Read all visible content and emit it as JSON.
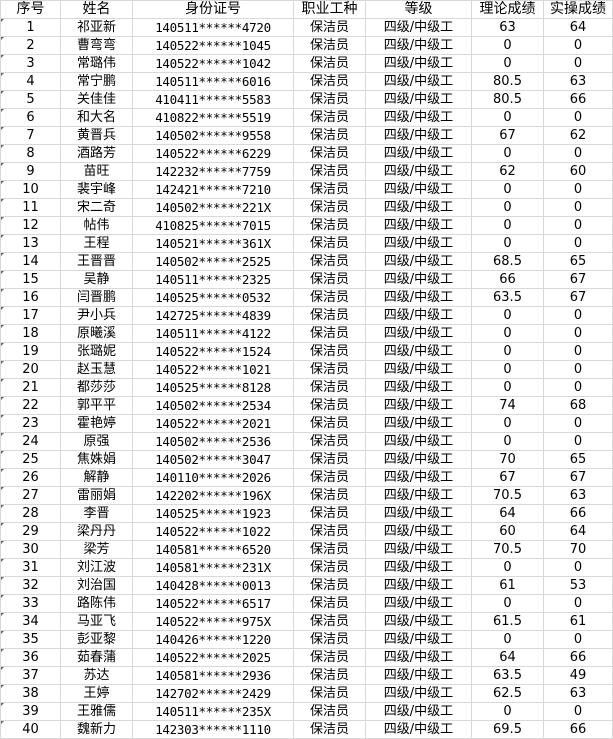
{
  "headers": [
    "序号",
    "姓名",
    "身份证号",
    "职业工种",
    "等级",
    "理论成绩",
    "实操成绩"
  ],
  "rows": [
    [
      "1",
      "祁亚新",
      "140511******4720",
      "保洁员",
      "四级/中级工",
      "63",
      "64"
    ],
    [
      "2",
      "曹弯弯",
      "140522******1045",
      "保洁员",
      "四级/中级工",
      "0",
      "0"
    ],
    [
      "3",
      "常璐伟",
      "140522******1042",
      "保洁员",
      "四级/中级工",
      "0",
      "0"
    ],
    [
      "4",
      "常宁鹏",
      "140511******6016",
      "保洁员",
      "四级/中级工",
      "80.5",
      "63"
    ],
    [
      "5",
      "关佳佳",
      "410411******5583",
      "保洁员",
      "四级/中级工",
      "80.5",
      "66"
    ],
    [
      "6",
      "和大名",
      "410822******5519",
      "保洁员",
      "四级/中级工",
      "0",
      "0"
    ],
    [
      "7",
      "黄晋兵",
      "140502******9558",
      "保洁员",
      "四级/中级工",
      "67",
      "62"
    ],
    [
      "8",
      "酒路芳",
      "140522******6229",
      "保洁员",
      "四级/中级工",
      "0",
      "0"
    ],
    [
      "9",
      "苗旺",
      "142232******7759",
      "保洁员",
      "四级/中级工",
      "62",
      "60"
    ],
    [
      "10",
      "裴宇峰",
      "142421******7210",
      "保洁员",
      "四级/中级工",
      "0",
      "0"
    ],
    [
      "11",
      "宋二奇",
      "140502******221X",
      "保洁员",
      "四级/中级工",
      "0",
      "0"
    ],
    [
      "12",
      "帖伟",
      "410825******7015",
      "保洁员",
      "四级/中级工",
      "0",
      "0"
    ],
    [
      "13",
      "王程",
      "140521******361X",
      "保洁员",
      "四级/中级工",
      "0",
      "0"
    ],
    [
      "14",
      "王晋晋",
      "140502******2525",
      "保洁员",
      "四级/中级工",
      "68.5",
      "65"
    ],
    [
      "15",
      "吴静",
      "140511******2325",
      "保洁员",
      "四级/中级工",
      "66",
      "67"
    ],
    [
      "16",
      "闫晋鹏",
      "140525******0532",
      "保洁员",
      "四级/中级工",
      "63.5",
      "67"
    ],
    [
      "17",
      "尹小兵",
      "142725******4839",
      "保洁员",
      "四级/中级工",
      "0",
      "0"
    ],
    [
      "18",
      "原曦溪",
      "140511******4122",
      "保洁员",
      "四级/中级工",
      "0",
      "0"
    ],
    [
      "19",
      "张璐妮",
      "140522******1524",
      "保洁员",
      "四级/中级工",
      "0",
      "0"
    ],
    [
      "20",
      "赵玉慧",
      "140522******1021",
      "保洁员",
      "四级/中级工",
      "0",
      "0"
    ],
    [
      "21",
      "都莎莎",
      "140525******8128",
      "保洁员",
      "四级/中级工",
      "0",
      "0"
    ],
    [
      "22",
      "郭平平",
      "140502******2534",
      "保洁员",
      "四级/中级工",
      "74",
      "68"
    ],
    [
      "23",
      "霍艳婷",
      "140522******2021",
      "保洁员",
      "四级/中级工",
      "0",
      "0"
    ],
    [
      "24",
      "原强",
      "140502******2536",
      "保洁员",
      "四级/中级工",
      "0",
      "0"
    ],
    [
      "25",
      "焦姝娟",
      "140502******3047",
      "保洁员",
      "四级/中级工",
      "70",
      "65"
    ],
    [
      "26",
      "解静",
      "140110******2026",
      "保洁员",
      "四级/中级工",
      "67",
      "67"
    ],
    [
      "27",
      "雷丽娟",
      "142202******196X",
      "保洁员",
      "四级/中级工",
      "70.5",
      "63"
    ],
    [
      "28",
      "李晋",
      "140525******1923",
      "保洁员",
      "四级/中级工",
      "64",
      "66"
    ],
    [
      "29",
      "梁丹丹",
      "140522******1022",
      "保洁员",
      "四级/中级工",
      "60",
      "64"
    ],
    [
      "30",
      "梁芳",
      "140581******6520",
      "保洁员",
      "四级/中级工",
      "70.5",
      "70"
    ],
    [
      "31",
      "刘江波",
      "140581******231X",
      "保洁员",
      "四级/中级工",
      "0",
      "0"
    ],
    [
      "32",
      "刘治国",
      "140428******0013",
      "保洁员",
      "四级/中级工",
      "61",
      "53"
    ],
    [
      "33",
      "路陈伟",
      "140522******6517",
      "保洁员",
      "四级/中级工",
      "0",
      "0"
    ],
    [
      "34",
      "马亚飞",
      "140522******975X",
      "保洁员",
      "四级/中级工",
      "61.5",
      "61"
    ],
    [
      "35",
      "彭亚黎",
      "140426******1220",
      "保洁员",
      "四级/中级工",
      "0",
      "0"
    ],
    [
      "36",
      "茹春蒲",
      "140522******2025",
      "保洁员",
      "四级/中级工",
      "64",
      "66"
    ],
    [
      "37",
      "苏达",
      "140581******2936",
      "保洁员",
      "四级/中级工",
      "63.5",
      "49"
    ],
    [
      "38",
      "王婷",
      "142702******2429",
      "保洁员",
      "四级/中级工",
      "62.5",
      "63"
    ],
    [
      "39",
      "王雅儒",
      "140511******235X",
      "保洁员",
      "四级/中级工",
      "0",
      "0"
    ],
    [
      "40",
      "魏新力",
      "142303******1110",
      "保洁员",
      "四级/中级工",
      "69.5",
      "66"
    ]
  ]
}
